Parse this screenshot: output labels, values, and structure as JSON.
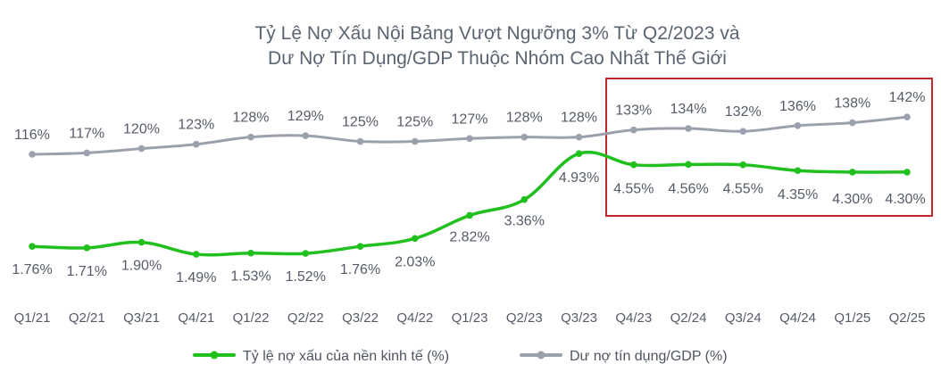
{
  "chart_data": {
    "type": "line",
    "title": [
      "Tỷ Lệ Nợ Xấu Nội Bảng Vượt Ngưỡng 3% Từ Q2/2023 và",
      "Dư Nợ Tín Dụng/GDP Thuộc Nhóm Cao Nhất Thế Giới"
    ],
    "categories": [
      "Q1/21",
      "Q2/21",
      "Q3/21",
      "Q4/21",
      "Q1/22",
      "Q2/22",
      "Q3/22",
      "Q4/22",
      "Q1/23",
      "Q2/23",
      "Q3/23",
      "Q4/23",
      "Q2/24",
      "Q3/24",
      "Q4/24",
      "Q1/25",
      "Q2/25"
    ],
    "series": [
      {
        "name": "Tỷ lệ nợ xấu của nền kinh tế (%)",
        "color": "#22c01f",
        "values": [
          1.76,
          1.71,
          1.9,
          1.49,
          1.53,
          1.52,
          1.76,
          2.03,
          2.82,
          3.36,
          4.93,
          4.55,
          4.56,
          4.55,
          4.35,
          4.3,
          4.3
        ],
        "labels": [
          "1.76%",
          "1.71%",
          "1.90%",
          "1.49%",
          "1.53%",
          "1.52%",
          "1.76%",
          "2.03%",
          "2.82%",
          "3.36%",
          "4.93%",
          "4.55%",
          "4.56%",
          "4.55%",
          "4.35%",
          "4.30%",
          "4.30%"
        ]
      },
      {
        "name": "Dư nợ tín dụng/GDP (%)",
        "color": "#9aa0ac",
        "values": [
          116,
          117,
          120,
          123,
          128,
          129,
          125,
          125,
          127,
          128,
          128,
          133,
          134,
          132,
          136,
          138,
          142
        ],
        "labels": [
          "116%",
          "117%",
          "120%",
          "123%",
          "128%",
          "129%",
          "125%",
          "125%",
          "127%",
          "128%",
          "128%",
          "133%",
          "134%",
          "132%",
          "136%",
          "138%",
          "142%"
        ]
      }
    ],
    "legend_position": "bottom",
    "grid": false,
    "highlight_color": "#c0282d"
  }
}
